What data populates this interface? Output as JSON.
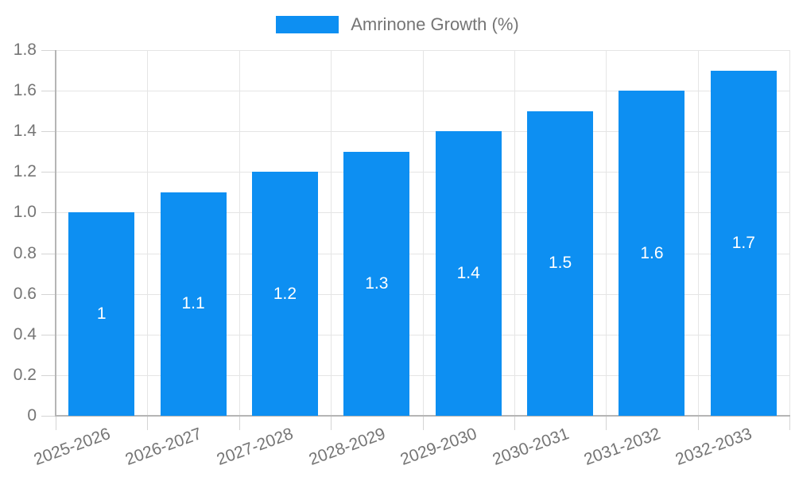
{
  "legend": {
    "position": "top",
    "items": [
      {
        "label": "Amrinone Growth (%)",
        "color": "#0d8ff2"
      }
    ]
  },
  "chart_data": {
    "type": "bar",
    "title": "",
    "xlabel": "",
    "ylabel": "",
    "categories": [
      "2025-2026",
      "2026-2027",
      "2027-2028",
      "2028-2029",
      "2029-2030",
      "2030-2031",
      "2031-2032",
      "2032-2033"
    ],
    "series": [
      {
        "name": "Amrinone Growth (%)",
        "color": "#0d8ff2",
        "values": [
          1,
          1.1,
          1.2,
          1.3,
          1.4,
          1.5,
          1.6,
          1.7
        ],
        "value_labels": [
          "1",
          "1.1",
          "1.2",
          "1.3",
          "1.4",
          "1.5",
          "1.6",
          "1.7"
        ]
      }
    ],
    "ylim": [
      0,
      1.8
    ],
    "yticks": [
      0,
      0.2,
      0.4,
      0.6,
      0.8,
      1.0,
      1.2,
      1.4,
      1.6,
      1.8
    ],
    "ytick_labels": [
      "0",
      "0.2",
      "0.4",
      "0.6",
      "0.8",
      "1.0",
      "1.2",
      "1.4",
      "1.6",
      "1.8"
    ],
    "grid": true,
    "legend_position": "top",
    "x_label_rotation_deg": -20,
    "bar_label_color": "#ffffff",
    "axis_text_color": "#757575",
    "grid_color": "#e5e5e5",
    "tick_mark_color": "#d4d4d4",
    "axis_line_color": "#b5b5b5",
    "background_color": "#ffffff"
  }
}
